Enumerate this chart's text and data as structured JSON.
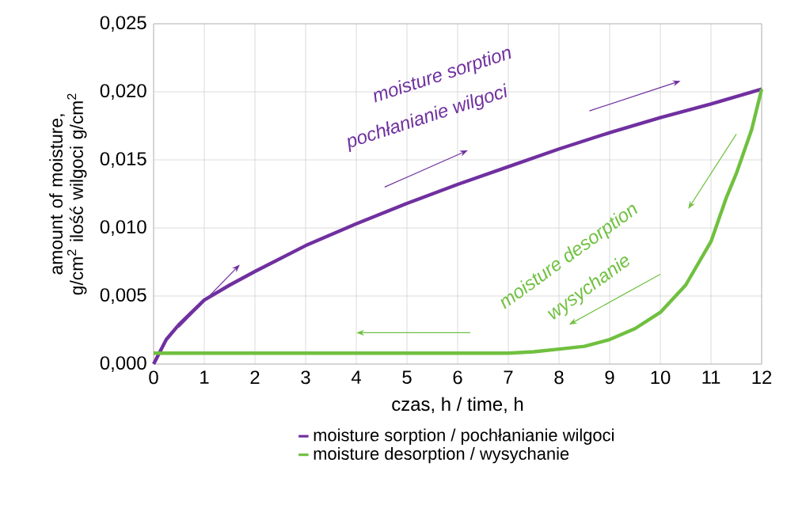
{
  "chart_data": {
    "type": "line",
    "xlabel": "czas, h / time, h",
    "ylabel": "amount of moisture, g/cm$^{2}$ ilość wilgoci g/cm$^{2}$",
    "xlim": [
      0,
      12
    ],
    "xticks": [
      0,
      1,
      2,
      3,
      4,
      5,
      6,
      7,
      8,
      9,
      10,
      11,
      12
    ],
    "ylim": [
      0,
      0.025
    ],
    "yticks": [
      {
        "value": 0,
        "label": "0,000"
      },
      {
        "value": 0.005,
        "label": "0,005"
      },
      {
        "value": 0.01,
        "label": "0,010"
      },
      {
        "value": 0.015,
        "label": "0,015"
      },
      {
        "value": 0.02,
        "label": "0,020"
      },
      {
        "value": 0.025,
        "label": "0,025"
      }
    ],
    "grid": true,
    "legend": "bottom",
    "marker": "none",
    "line_style": "solid",
    "series": [
      {
        "name": "moisture sorption / pochłanianie wilgoci",
        "color": "#7030a0",
        "x": [
          0,
          0.25,
          0.5,
          1,
          1.5,
          2,
          3,
          4,
          5,
          6,
          7,
          8,
          9,
          10,
          11,
          12
        ],
        "values": [
          0,
          0.0018,
          0.0029,
          0.0047,
          0.0058,
          0.0068,
          0.0087,
          0.0103,
          0.0118,
          0.0132,
          0.0145,
          0.0158,
          0.017,
          0.0181,
          0.0191,
          0.0202
        ]
      },
      {
        "name": "moisture desorption / wysychanie",
        "color": "#70c040",
        "x": [
          0,
          1,
          2,
          3,
          4,
          5,
          6,
          7,
          7.5,
          8,
          8.5,
          9,
          9.5,
          10,
          10.5,
          11,
          11.3,
          11.5,
          11.8,
          12
        ],
        "values": [
          0.0008,
          0.0008,
          0.0008,
          0.0008,
          0.0008,
          0.0008,
          0.0008,
          0.0008,
          0.0009,
          0.0011,
          0.0013,
          0.0018,
          0.0026,
          0.0038,
          0.0058,
          0.009,
          0.0122,
          0.014,
          0.0172,
          0.0202
        ]
      }
    ],
    "annotations": [
      "moisture sorption",
      "pochłanianie wilgoci",
      "moisture desorption",
      "wysychanie"
    ]
  }
}
